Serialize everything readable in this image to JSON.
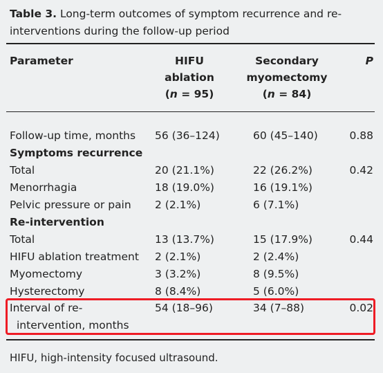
{
  "caption": {
    "label": "Table 3.",
    "text": " Long-term outcomes of symptom recurrence and re-interventions during the follow-up period"
  },
  "header": {
    "parameter": "Parameter",
    "col1_line1": "HIFU",
    "col1_line2": "ablation",
    "col1_n_prefix": "(",
    "col1_n_var": "n",
    "col1_n_suffix": " = 95)",
    "col2_line1": "Secondary",
    "col2_line2": "myomectomy",
    "col2_n_prefix": "(",
    "col2_n_var": "n",
    "col2_n_suffix": " = 84)",
    "p": "P"
  },
  "rows": [
    {
      "parameter": "Follow-up time, months",
      "hifu": "56 (36–124)",
      "myomectomy": "60 (45–140)",
      "p": "0.88"
    },
    {
      "parameter": "Symptoms recurrence",
      "hifu": "",
      "myomectomy": "",
      "p": ""
    },
    {
      "parameter": "Total",
      "hifu": "20 (21.1%)",
      "myomectomy": "22 (26.2%)",
      "p": "0.42"
    },
    {
      "parameter": "Menorrhagia",
      "hifu": "18 (19.0%)",
      "myomectomy": "16 (19.1%)",
      "p": ""
    },
    {
      "parameter": "Pelvic pressure or pain",
      "hifu": "2 (2.1%)",
      "myomectomy": "6 (7.1%)",
      "p": ""
    },
    {
      "parameter": "Re-intervention",
      "hifu": "",
      "myomectomy": "",
      "p": ""
    },
    {
      "parameter": "Total",
      "hifu": "13 (13.7%)",
      "myomectomy": "15 (17.9%)",
      "p": "0.44"
    },
    {
      "parameter": "HIFU ablation treatment",
      "hifu": "2 (2.1%)",
      "myomectomy": "2 (2.4%)",
      "p": ""
    },
    {
      "parameter": "Myomectomy",
      "hifu": "3 (3.2%)",
      "myomectomy": "8 (9.5%)",
      "p": ""
    },
    {
      "parameter": "Hysterectomy",
      "hifu": "8 (8.4%)",
      "myomectomy": "5 (6.0%)",
      "p": ""
    }
  ],
  "interval_row": {
    "parameter_line1": "Interval of re-",
    "parameter_line2": "intervention, months",
    "hifu": "54 (18–96)",
    "myomectomy": "34 (7–88)",
    "p": "0.02"
  },
  "footnote": "HIFU, high-intensity focused ultrasound.",
  "colors": {
    "background": "#eef0f1",
    "highlight": "#ee1c25",
    "text": "#222222"
  }
}
